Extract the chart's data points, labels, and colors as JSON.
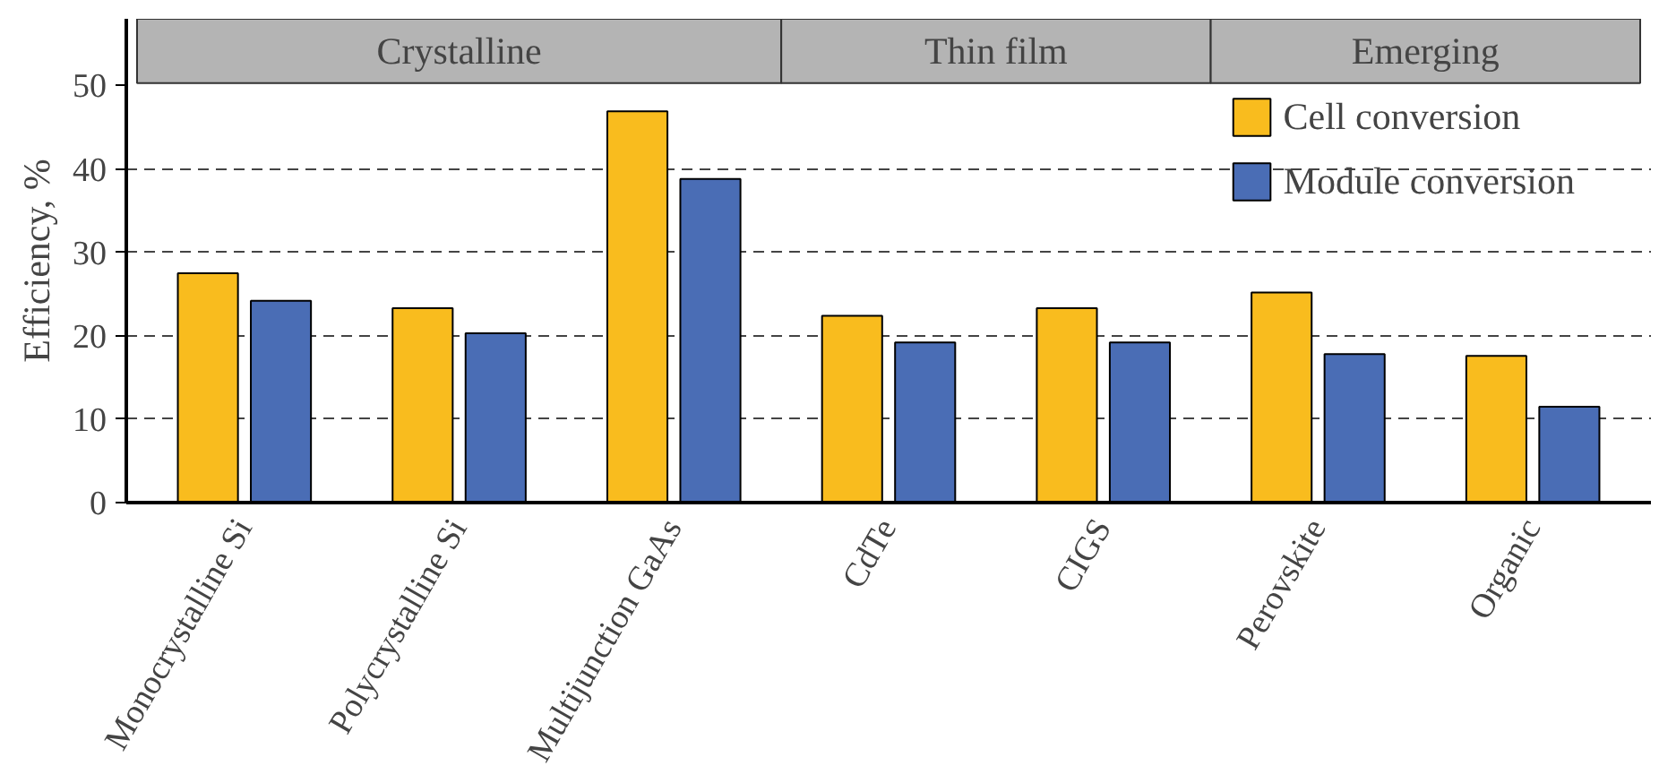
{
  "chart_data": {
    "type": "bar",
    "ylabel": "Efficiency, %",
    "categories": [
      "Monocrystalline Si",
      "Polycrystalline Si",
      "Multijunction GaAs",
      "CdTe",
      "CIGS",
      "Perovskite",
      "Organic"
    ],
    "series": [
      {
        "name": "Cell conversion",
        "color": "#f9bc1e",
        "values": [
          27.5,
          23.3,
          46.9,
          22.4,
          23.3,
          25.2,
          17.6
        ]
      },
      {
        "name": "Module conversion",
        "color": "#4a6db5",
        "values": [
          24.2,
          20.3,
          38.8,
          19.2,
          19.2,
          17.8,
          11.5
        ]
      }
    ],
    "ylim": [
      0,
      58
    ],
    "yticks": [
      0,
      10,
      20,
      30,
      40,
      50
    ],
    "bands": [
      {
        "axis": "x",
        "from": "Monocrystalline Si",
        "to": "Multijunction GaAs",
        "label": "Crystalline",
        "color": "#b4b4b4"
      },
      {
        "axis": "x",
        "from": "CdTe",
        "to": "CIGS",
        "label": "Thin film",
        "color": "#b4b4b4"
      },
      {
        "axis": "x",
        "from": "Perovskite",
        "to": "Organic",
        "label": "Emerging",
        "color": "#b4b4b4"
      }
    ],
    "grid": "y",
    "legend": "top right"
  }
}
